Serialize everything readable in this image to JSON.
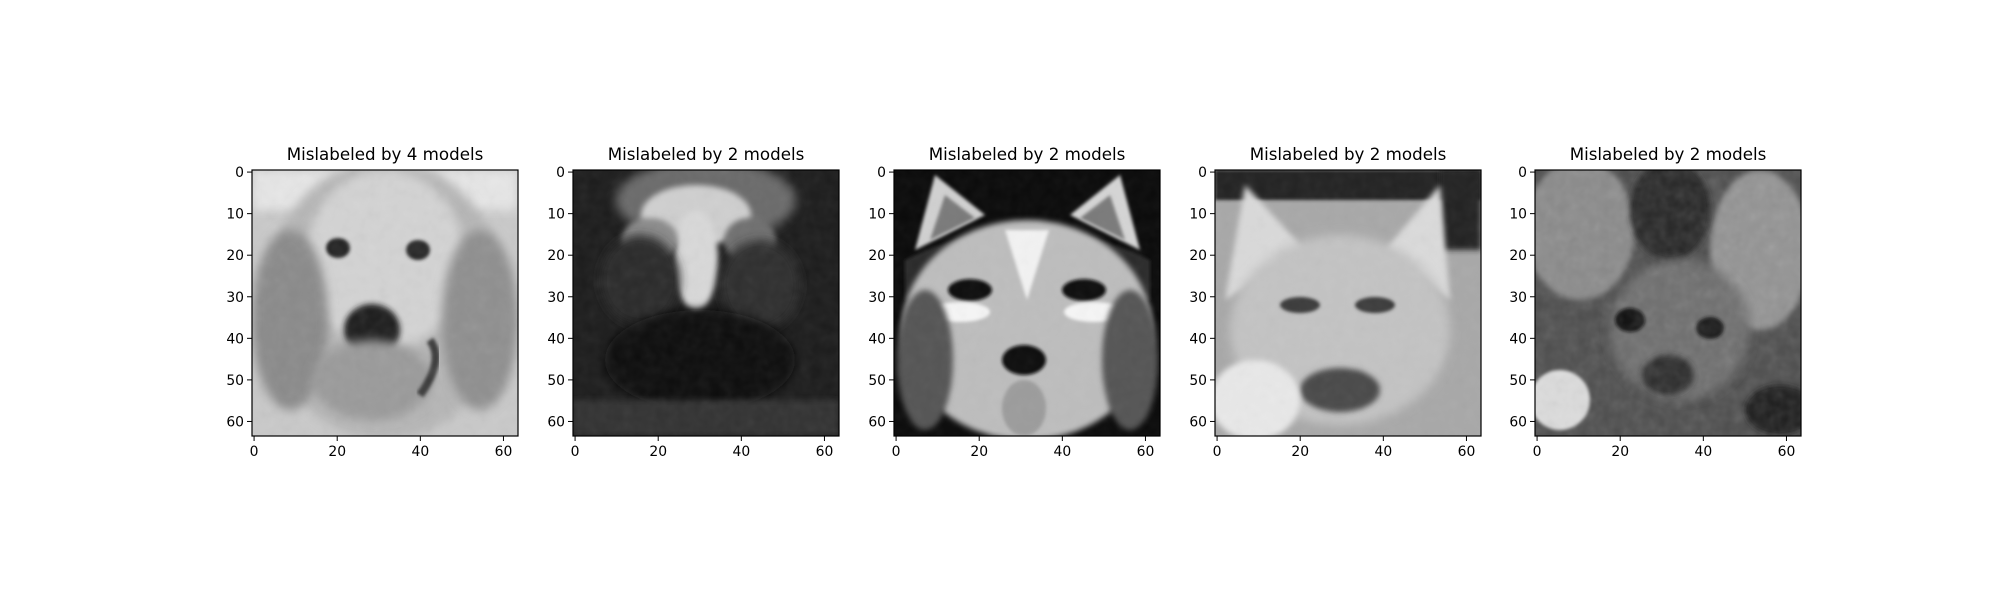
{
  "figure": {
    "panels": [
      {
        "title": "Mislabeled by 4 models",
        "subject": "golden retriever face",
        "tone": "light grey, soft",
        "x_ticks": [
          "0",
          "20",
          "40",
          "60"
        ],
        "y_ticks": [
          "0",
          "10",
          "20",
          "30",
          "40",
          "50",
          "60"
        ]
      },
      {
        "title": "Mislabeled by 2 models",
        "subject": "dark dog face with bright forehead blaze",
        "tone": "very dark",
        "x_ticks": [
          "0",
          "20",
          "40",
          "60"
        ],
        "y_ticks": [
          "0",
          "10",
          "20",
          "30",
          "40",
          "50",
          "60"
        ]
      },
      {
        "title": "Mislabeled by 2 models",
        "subject": "husky face with tongue out",
        "tone": "high contrast",
        "x_ticks": [
          "0",
          "20",
          "40",
          "60"
        ],
        "y_ticks": [
          "0",
          "10",
          "20",
          "30",
          "40",
          "50",
          "60"
        ]
      },
      {
        "title": "Mislabeled by 2 models",
        "subject": "german shepherd style face with upright ears",
        "tone": "light grey",
        "x_ticks": [
          "0",
          "20",
          "40",
          "60"
        ],
        "y_ticks": [
          "0",
          "10",
          "20",
          "30",
          "40",
          "50",
          "60"
        ]
      },
      {
        "title": "Mislabeled by 2 models",
        "subject": "dark mottled dog face",
        "tone": "dark, textured",
        "x_ticks": [
          "0",
          "20",
          "40",
          "60"
        ],
        "y_ticks": [
          "0",
          "10",
          "20",
          "30",
          "40",
          "50",
          "60"
        ]
      }
    ],
    "colors": {
      "background": "#ffffff",
      "axis": "#000000",
      "image_colormap": "grayscale"
    }
  }
}
